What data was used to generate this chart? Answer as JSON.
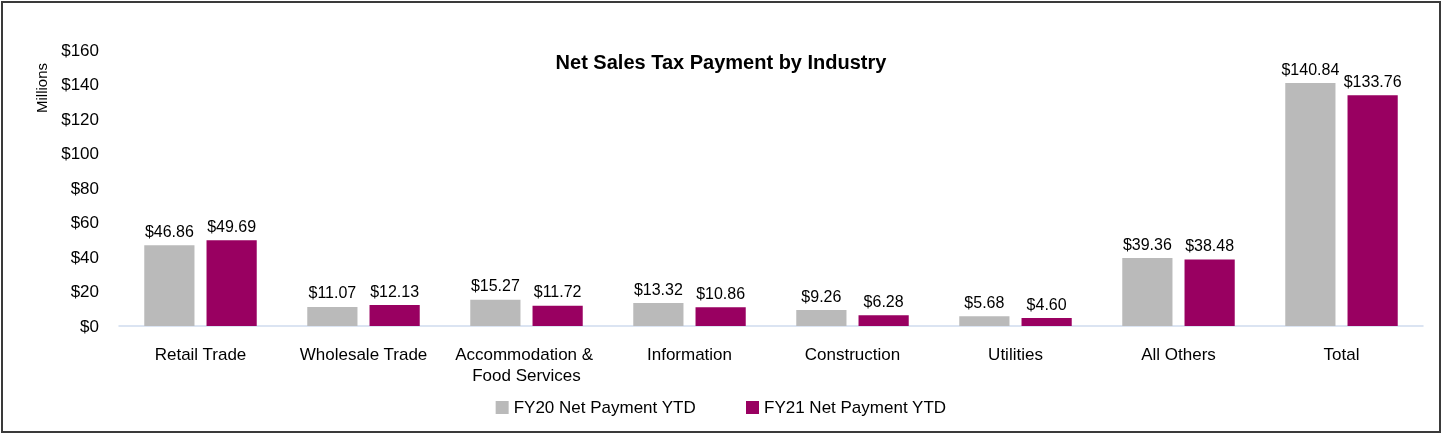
{
  "chart_data": {
    "type": "bar",
    "title": "Net Sales Tax Payment by Industry",
    "ylabel": "Millions",
    "categories": [
      "Retail Trade",
      "Wholesale Trade",
      "Accommodation & Food Services",
      "Information",
      "Construction",
      "Utilities",
      "All Others",
      "Total"
    ],
    "series": [
      {
        "name": "FY20 Net Payment YTD",
        "color": "#bababa",
        "values": [
          46.86,
          11.07,
          15.27,
          13.32,
          9.26,
          5.68,
          39.36,
          140.84
        ],
        "value_labels": [
          "$46.86",
          "$11.07",
          "$15.27",
          "$13.32",
          "$9.26",
          "$5.68",
          "$39.36",
          "$140.84"
        ]
      },
      {
        "name": "FY21 Net Payment YTD",
        "color": "#990061",
        "values": [
          49.69,
          12.13,
          11.72,
          10.86,
          6.28,
          4.6,
          38.48,
          133.76
        ],
        "value_labels": [
          "$49.69",
          "$12.13",
          "$11.72",
          "$10.86",
          "$6.28",
          "$4.60",
          "$38.48",
          "$133.76"
        ]
      }
    ],
    "ylim": [
      0,
      160
    ],
    "yticks": [
      {
        "value": 0,
        "label": "$0"
      },
      {
        "value": 20,
        "label": "$20"
      },
      {
        "value": 40,
        "label": "$40"
      },
      {
        "value": 60,
        "label": "$60"
      },
      {
        "value": 80,
        "label": "$80"
      },
      {
        "value": 100,
        "label": "$100"
      },
      {
        "value": 120,
        "label": "$120"
      },
      {
        "value": 140,
        "label": "$140"
      },
      {
        "value": 160,
        "label": "$160"
      }
    ],
    "grid": false,
    "legend": "bottom"
  }
}
